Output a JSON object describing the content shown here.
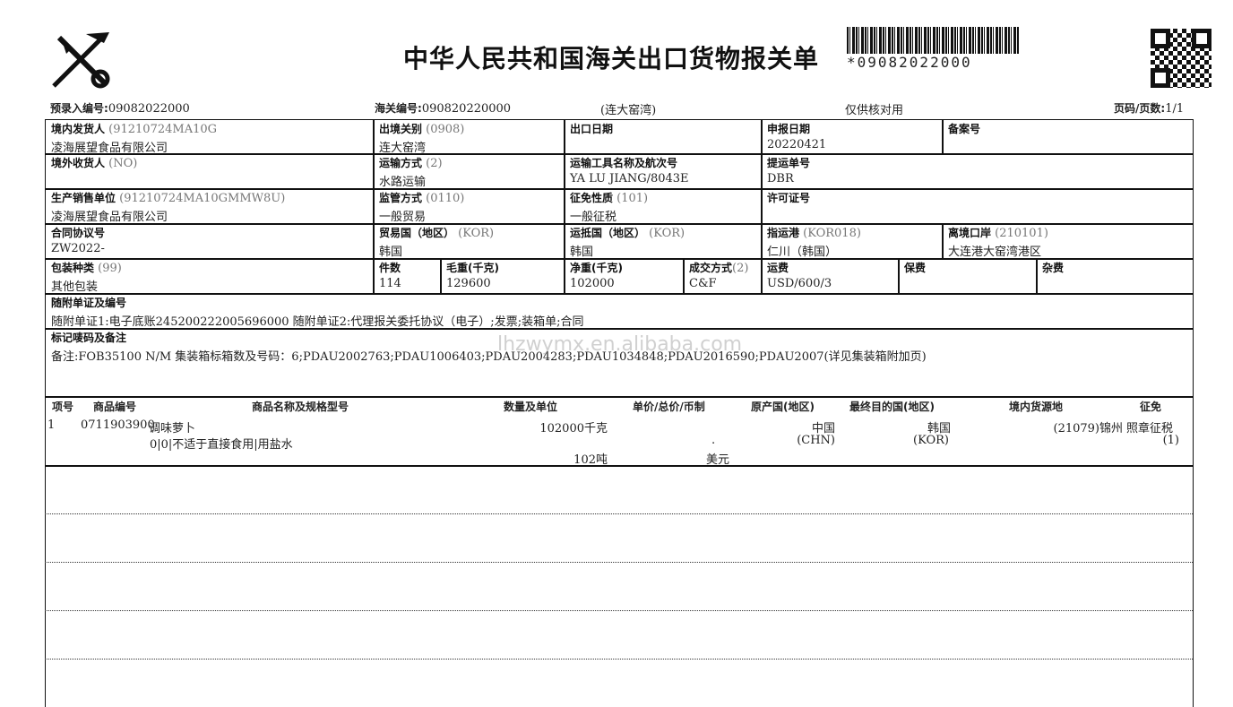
{
  "header": {
    "title": "中华人民共和国海关出口货物报关单",
    "barcode_number": "*09082022000",
    "pre_entry_label": "预录入编号:",
    "pre_entry_no": "09082022000",
    "customs_label": "海关编号:",
    "customs_no": "090820220000",
    "port_note": "(连大窑湾)",
    "check_only": "仅供核对用",
    "page_label": "页码/页数:",
    "page_value": "1/1"
  },
  "fields": {
    "shipper": {
      "label": "境内发货人",
      "code": "(91210724MA10G",
      "value": "凌海展望食品有限公司"
    },
    "exit_customs": {
      "label": "出境关别",
      "code": "(0908)",
      "value": "连大窑湾"
    },
    "export_date": {
      "label": "出口日期",
      "value": ""
    },
    "declare_date": {
      "label": "申报日期",
      "value": "20220421"
    },
    "record_no": {
      "label": "备案号",
      "value": ""
    },
    "consignee": {
      "label": "境外收货人",
      "code": "(NO)",
      "value": ""
    },
    "transport_mode": {
      "label": "运输方式",
      "code": "(2)",
      "value": "水路运输"
    },
    "vessel": {
      "label": "运输工具名称及航次号",
      "value": "YA LU JIANG/8043E"
    },
    "bl_no": {
      "label": "提运单号",
      "value": "DBR"
    },
    "producer": {
      "label": "生产销售单位",
      "code": "(91210724MA10GMMW8U)",
      "value": "凌海展望食品有限公司"
    },
    "supervision": {
      "label": "监管方式",
      "code": "(0110)",
      "value": "一般贸易"
    },
    "tax_nature": {
      "label": "征免性质",
      "code": "(101)",
      "value": "一般征税"
    },
    "license": {
      "label": "许可证号",
      "value": ""
    },
    "contract": {
      "label": "合同协议号",
      "value": "ZW2022-"
    },
    "trade_country": {
      "label": "贸易国（地区）",
      "code": "(KOR)",
      "value": "韩国"
    },
    "dest_country": {
      "label": "运抵国（地区）",
      "code": "(KOR)",
      "value": "韩国"
    },
    "dest_port": {
      "label": "指运港",
      "code": "(KOR018)",
      "value": "仁川（韩国）"
    },
    "exit_port": {
      "label": "离境口岸",
      "code": "(210101)",
      "value": "大连港大窑湾港区"
    },
    "package": {
      "label": "包装种类",
      "code": "(99)",
      "value": "其他包装"
    },
    "pieces": {
      "label": "件数",
      "value": "114"
    },
    "gross": {
      "label": "毛重(千克)",
      "value": "129600"
    },
    "net": {
      "label": "净重(千克)",
      "value": "102000"
    },
    "terms": {
      "label": "成交方式",
      "code": "(2)",
      "value": "C&F"
    },
    "freight": {
      "label": "运费",
      "value": "USD/600/3"
    },
    "insurance": {
      "label": "保费",
      "value": ""
    },
    "misc": {
      "label": "杂费",
      "value": ""
    },
    "docs": {
      "label": "随附单证及编号",
      "value": "随附单证1:电子底账245200222005696000 随附单证2:代理报关委托协议（电子）;发票;装箱单;合同"
    },
    "marks": {
      "label": "标记唛码及备注",
      "value": "备注:FOB35100 N/M  集装箱标箱数及号码：6;PDAU2002763;PDAU1006403;PDAU2004283;PDAU1034848;PDAU2016590;PDAU2007(详见集装箱附加页)"
    }
  },
  "goods": {
    "headers": [
      "项号",
      "商品编号",
      "商品名称及规格型号",
      "数量及单位",
      "单价/总价/币制",
      "原产国(地区)",
      "最终目的国(地区)",
      "境内货源地",
      "征免"
    ],
    "rows": [
      {
        "no": "1",
        "code": "0711903900",
        "name": "调味萝卜",
        "spec": "0|0|不适于直接食用|用盐水",
        "qty1": "102000千克",
        "qty2": "102吨",
        "price": ".",
        "currency": "美元",
        "origin": "中国",
        "origin_code": "(CHN)",
        "dest": "韩国",
        "dest_code": "(KOR)",
        "source": "(21079)锦州",
        "tax": "照章征税",
        "tax_code": "(1)"
      }
    ]
  },
  "watermark": "lhzwymx.en.alibaba.com"
}
